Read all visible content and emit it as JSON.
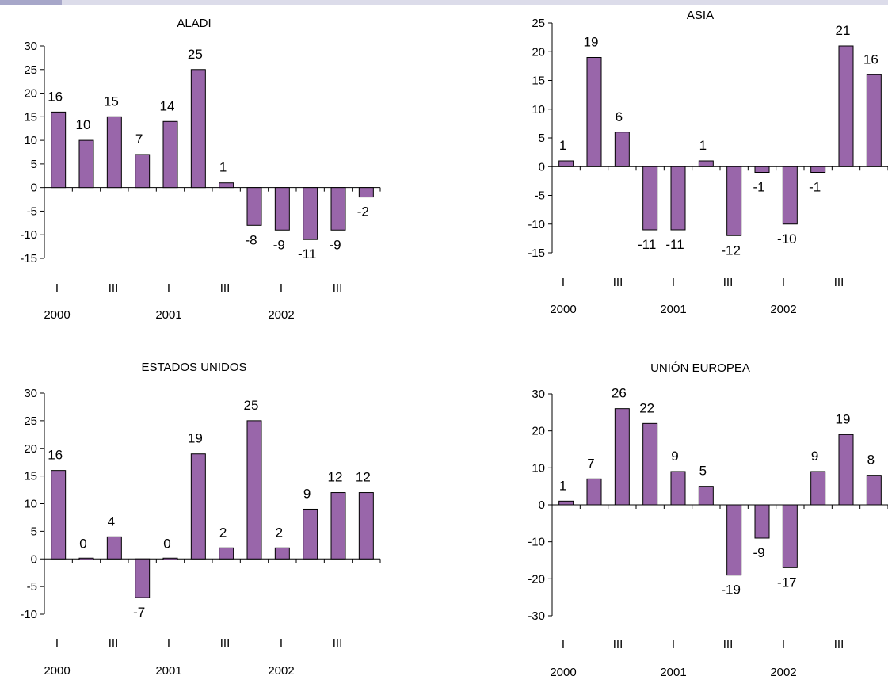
{
  "chart_data": [
    {
      "type": "bar",
      "title": "ALADI",
      "values": [
        16,
        10,
        15,
        7,
        14,
        25,
        1,
        -8,
        -9,
        -11,
        -9,
        -2
      ],
      "data_labels": [
        "16",
        "10",
        "15",
        "7",
        "14",
        "25",
        "1",
        "-8",
        "-9",
        "-11",
        "-9",
        "-2"
      ],
      "quarter_labels": [
        "I",
        "III",
        "I",
        "III",
        "I",
        "III"
      ],
      "year_labels": [
        "2000",
        "2001",
        "2002"
      ],
      "yticks": [
        "30",
        "25",
        "20",
        "15",
        "10",
        "5",
        "0",
        "-5",
        "-10",
        "-15"
      ],
      "ylim": [
        -15,
        30
      ],
      "color": "#9966aa"
    },
    {
      "type": "bar",
      "title": "ASIA",
      "values": [
        1,
        19,
        6,
        -11,
        -11,
        1,
        -12,
        -1,
        -10,
        -1,
        21,
        16
      ],
      "data_labels": [
        "1",
        "19",
        "6",
        "-11",
        "-11",
        "1",
        "-12",
        "-1",
        "-10",
        "-1",
        "21",
        "16"
      ],
      "quarter_labels": [
        "I",
        "III",
        "I",
        "III",
        "I",
        "III"
      ],
      "year_labels": [
        "2000",
        "2001",
        "2002"
      ],
      "yticks": [
        "25",
        "20",
        "15",
        "10",
        "5",
        "0",
        "-5",
        "-10",
        "-15"
      ],
      "ylim": [
        -15,
        25
      ],
      "color": "#9966aa"
    },
    {
      "type": "bar",
      "title": "ESTADOS UNIDOS",
      "values": [
        16,
        0,
        4,
        -7,
        0,
        19,
        2,
        25,
        2,
        9,
        12,
        12
      ],
      "data_labels": [
        "16",
        "0",
        "4",
        "-7",
        "0",
        "19",
        "2",
        "25",
        "2",
        "9",
        "12",
        "12"
      ],
      "quarter_labels": [
        "I",
        "III",
        "I",
        "III",
        "I",
        "III"
      ],
      "year_labels": [
        "2000",
        "2001",
        "2002"
      ],
      "yticks": [
        "30",
        "25",
        "20",
        "15",
        "10",
        "5",
        "0",
        "-5",
        "-10"
      ],
      "ylim": [
        -10,
        30
      ],
      "color": "#9966aa"
    },
    {
      "type": "bar",
      "title": "UNIÓN EUROPEA",
      "values": [
        1,
        7,
        26,
        22,
        9,
        5,
        -19,
        -9,
        -17,
        9,
        19,
        8
      ],
      "data_labels": [
        "1",
        "7",
        "26",
        "22",
        "9",
        "5",
        "-19",
        "-9",
        "-17",
        "9",
        "19",
        "8"
      ],
      "quarter_labels": [
        "I",
        "III",
        "I",
        "III",
        "I",
        "III"
      ],
      "year_labels": [
        "2000",
        "2001",
        "2002"
      ],
      "yticks": [
        "30",
        "20",
        "10",
        "0",
        "-10",
        "-20",
        "-30"
      ],
      "ylim": [
        -30,
        30
      ],
      "color": "#9966aa"
    }
  ]
}
